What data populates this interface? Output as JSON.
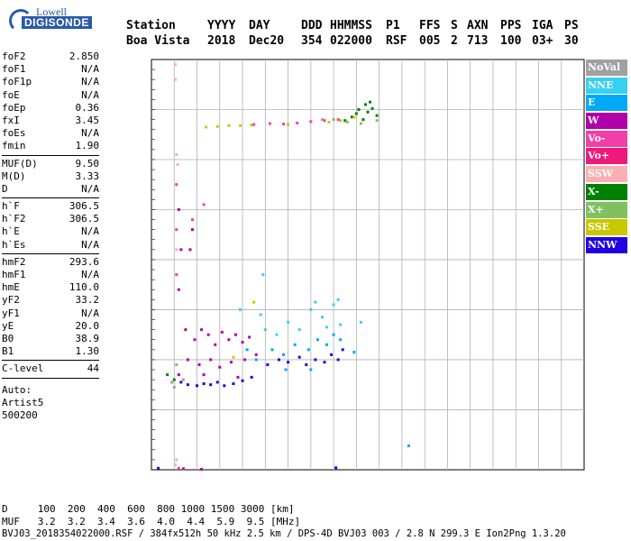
{
  "logo": {
    "line1": "Lowell",
    "line2": "DIGISONDE"
  },
  "header": {
    "labels": [
      "Station",
      "YYYY",
      "DAY",
      "DDD",
      "HHMMSS",
      "P1",
      "FFS",
      "S",
      "AXN",
      "PPS",
      "IGA",
      "PS"
    ],
    "values": [
      "Boa Vista",
      "2018",
      "Dec20",
      "354",
      "022000",
      "RSF",
      "005",
      "2",
      "713",
      "100",
      "03+",
      "30"
    ]
  },
  "params": {
    "group1": [
      {
        "k": "foF2",
        "v": "2.850"
      },
      {
        "k": "foF1",
        "v": "N/A"
      },
      {
        "k": "foF1p",
        "v": "N/A"
      },
      {
        "k": "foE",
        "v": "N/A"
      },
      {
        "k": "foEp",
        "v": "0.36"
      },
      {
        "k": "fxI",
        "v": "3.45"
      },
      {
        "k": "foEs",
        "v": "N/A"
      },
      {
        "k": "fmin",
        "v": "1.90"
      }
    ],
    "group2": [
      {
        "k": "MUF(D)",
        "v": "9.50"
      },
      {
        "k": "M(D)",
        "v": "3.33"
      },
      {
        "k": "D",
        "v": "N/A"
      }
    ],
    "group3": [
      {
        "k": "h`F",
        "v": "306.5"
      },
      {
        "k": "h`F2",
        "v": "306.5"
      },
      {
        "k": "h`E",
        "v": "N/A"
      },
      {
        "k": "h`Es",
        "v": "N/A"
      }
    ],
    "group4": [
      {
        "k": "hmF2",
        "v": "293.6"
      },
      {
        "k": "hmF1",
        "v": "N/A"
      },
      {
        "k": "hmE",
        "v": "110.0"
      },
      {
        "k": "yF2",
        "v": "33.2"
      },
      {
        "k": "yF1",
        "v": "N/A"
      },
      {
        "k": "yE",
        "v": "20.0"
      },
      {
        "k": "B0",
        "v": "38.9"
      },
      {
        "k": "B1",
        "v": "1.30"
      }
    ],
    "group5": [
      {
        "k": "C-level",
        "v": "44"
      }
    ],
    "extra": [
      "Auto:",
      "Artist5",
      "500200"
    ]
  },
  "legend": [
    {
      "label": "NoVal",
      "color": "#a0a0a0"
    },
    {
      "label": "NNE",
      "color": "#38d0f0"
    },
    {
      "label": "E",
      "color": "#00a8f8"
    },
    {
      "label": "W",
      "color": "#b000a8"
    },
    {
      "label": "Vo-",
      "color": "#f040a8"
    },
    {
      "label": "Vo+",
      "color": "#f01878"
    },
    {
      "label": "SSW",
      "color": "#f8b0b0"
    },
    {
      "label": "X-",
      "color": "#008000"
    },
    {
      "label": "X+",
      "color": "#80c060"
    },
    {
      "label": "SSE",
      "color": "#c8c800"
    },
    {
      "label": "NNW",
      "color": "#2000e0"
    }
  ],
  "bottom": {
    "d_line": "D     100  200  400  600  800 1000 1500 3000 [km]",
    "muf_line": "MUF   3.2  3.2  3.4  3.6  4.0  4.4  5.9  9.5 [MHz]",
    "file_line": "BVJ03_2018354022000.RSF / 384fx512h 50 kHz 2.5 km / DPS-4D BVJ03 003 / 2.8 N 299.3 E Ion2Png 1.3.20"
  },
  "chart_data": {
    "type": "scatter",
    "title": "",
    "xlabel": "",
    "ylabel": "",
    "xlim": [
      1,
      20
    ],
    "ylim": [
      80,
      900
    ],
    "x_ticks": [
      1,
      2,
      3,
      4,
      5,
      6,
      7,
      8,
      9,
      10,
      11,
      12,
      13,
      14,
      15,
      16,
      17,
      18,
      19,
      20
    ],
    "y_ticks": [
      80,
      200,
      300,
      400,
      500,
      600,
      700,
      800,
      900
    ],
    "grid": true,
    "legend_position": "right",
    "series": [
      {
        "name": "NNW",
        "color": "#2000e0",
        "points": [
          [
            2.3,
            255
          ],
          [
            2.6,
            250
          ],
          [
            3.0,
            248
          ],
          [
            3.3,
            252
          ],
          [
            3.6,
            250
          ],
          [
            3.9,
            255
          ],
          [
            4.2,
            248
          ],
          [
            4.6,
            252
          ],
          [
            5.0,
            258
          ],
          [
            5.4,
            265
          ],
          [
            6.1,
            290
          ],
          [
            6.6,
            300
          ],
          [
            7.0,
            295
          ],
          [
            7.5,
            305
          ],
          [
            7.8,
            290
          ],
          [
            8.2,
            300
          ],
          [
            8.6,
            295
          ],
          [
            8.9,
            310
          ],
          [
            9.2,
            300
          ],
          [
            9.4,
            320
          ],
          [
            1.3,
            83
          ],
          [
            9.1,
            84
          ]
        ]
      },
      {
        "name": "W",
        "color": "#b000a8",
        "points": [
          [
            2.2,
            600
          ],
          [
            2.3,
            520
          ],
          [
            2.2,
            440
          ],
          [
            2.8,
            560
          ],
          [
            2.7,
            520
          ],
          [
            2.5,
            360
          ],
          [
            2.9,
            340
          ],
          [
            3.2,
            360
          ],
          [
            3.5,
            350
          ],
          [
            3.8,
            330
          ],
          [
            4.1,
            355
          ],
          [
            4.4,
            340
          ],
          [
            4.7,
            350
          ],
          [
            5.0,
            335
          ],
          [
            5.3,
            345
          ],
          [
            2.6,
            300
          ],
          [
            3.1,
            290
          ],
          [
            3.6,
            300
          ],
          [
            4.0,
            285
          ],
          [
            4.5,
            295
          ],
          [
            5.1,
            300
          ],
          [
            5.6,
            310
          ],
          [
            2.2,
            270
          ],
          [
            3.3,
            270
          ],
          [
            4.8,
            265
          ],
          [
            2.4,
            82
          ],
          [
            3.2,
            81
          ]
        ]
      },
      {
        "name": "E",
        "color": "#00a8f8",
        "points": [
          [
            6.3,
            320
          ],
          [
            6.8,
            310
          ],
          [
            7.3,
            330
          ],
          [
            7.9,
            320
          ],
          [
            8.3,
            340
          ],
          [
            8.7,
            330
          ],
          [
            9.0,
            350
          ],
          [
            9.3,
            340
          ],
          [
            6.9,
            280
          ],
          [
            8.0,
            280
          ],
          [
            5.6,
            300
          ],
          [
            5.2,
            320
          ],
          [
            9.9,
            315
          ],
          [
            12.3,
            128
          ]
        ]
      },
      {
        "name": "NNE",
        "color": "#38d0f0",
        "points": [
          [
            6.0,
            360
          ],
          [
            6.5,
            350
          ],
          [
            7.0,
            375
          ],
          [
            7.5,
            360
          ],
          [
            8.0,
            400
          ],
          [
            8.2,
            415
          ],
          [
            8.5,
            385
          ],
          [
            9.0,
            410
          ],
          [
            9.2,
            420
          ],
          [
            8.7,
            365
          ],
          [
            9.3,
            370
          ],
          [
            5.8,
            390
          ],
          [
            4.9,
            400
          ],
          [
            5.9,
            470
          ],
          [
            10.2,
            375
          ]
        ]
      },
      {
        "name": "X-",
        "color": "#008000",
        "points": [
          [
            9.8,
            785
          ],
          [
            10.0,
            792
          ],
          [
            10.1,
            800
          ],
          [
            10.3,
            780
          ],
          [
            10.5,
            795
          ],
          [
            10.7,
            802
          ],
          [
            10.9,
            788
          ],
          [
            10.4,
            810
          ],
          [
            10.6,
            815
          ],
          [
            9.5,
            778
          ],
          [
            2.0,
            260
          ],
          [
            1.7,
            270
          ]
        ]
      },
      {
        "name": "X+",
        "color": "#80c060",
        "points": [
          [
            9.6,
            775
          ],
          [
            10.2,
            772
          ],
          [
            10.9,
            778
          ],
          [
            2.1,
            290
          ]
        ]
      },
      {
        "name": "SSE",
        "color": "#c8c800",
        "points": [
          [
            3.4,
            765
          ],
          [
            3.9,
            766
          ],
          [
            4.4,
            768
          ],
          [
            4.9,
            768
          ],
          [
            5.4,
            769
          ],
          [
            7.0,
            770
          ],
          [
            8.8,
            775
          ],
          [
            9.3,
            778
          ],
          [
            9.9,
            785
          ],
          [
            4.6,
            305
          ],
          [
            5.5,
            415
          ]
        ]
      },
      {
        "name": "Vo-",
        "color": "#f040a8",
        "points": [
          [
            2.1,
            650
          ],
          [
            2.1,
            560
          ],
          [
            2.1,
            470
          ],
          [
            2.8,
            580
          ],
          [
            3.3,
            610
          ],
          [
            5.5,
            770
          ],
          [
            6.2,
            772
          ],
          [
            6.8,
            771
          ],
          [
            7.4,
            773
          ],
          [
            8.0,
            776
          ],
          [
            8.6,
            778
          ],
          [
            9.2,
            780
          ],
          [
            2.2,
            83
          ]
        ]
      },
      {
        "name": "SSW",
        "color": "#f8b0b0",
        "points": [
          [
            2.05,
            890
          ],
          [
            2.05,
            860
          ],
          [
            2.1,
            710
          ],
          [
            2.15,
            690
          ],
          [
            2.1,
            520
          ],
          [
            2.1,
            100
          ],
          [
            2.05,
            90
          ]
        ]
      },
      {
        "name": "NoVal",
        "color": "#a0a0a0",
        "points": [
          [
            2.0,
            245
          ],
          [
            1.9,
            255
          ],
          [
            2.4,
            260
          ],
          [
            9.0,
            780
          ],
          [
            8.5,
            780
          ]
        ]
      }
    ]
  }
}
